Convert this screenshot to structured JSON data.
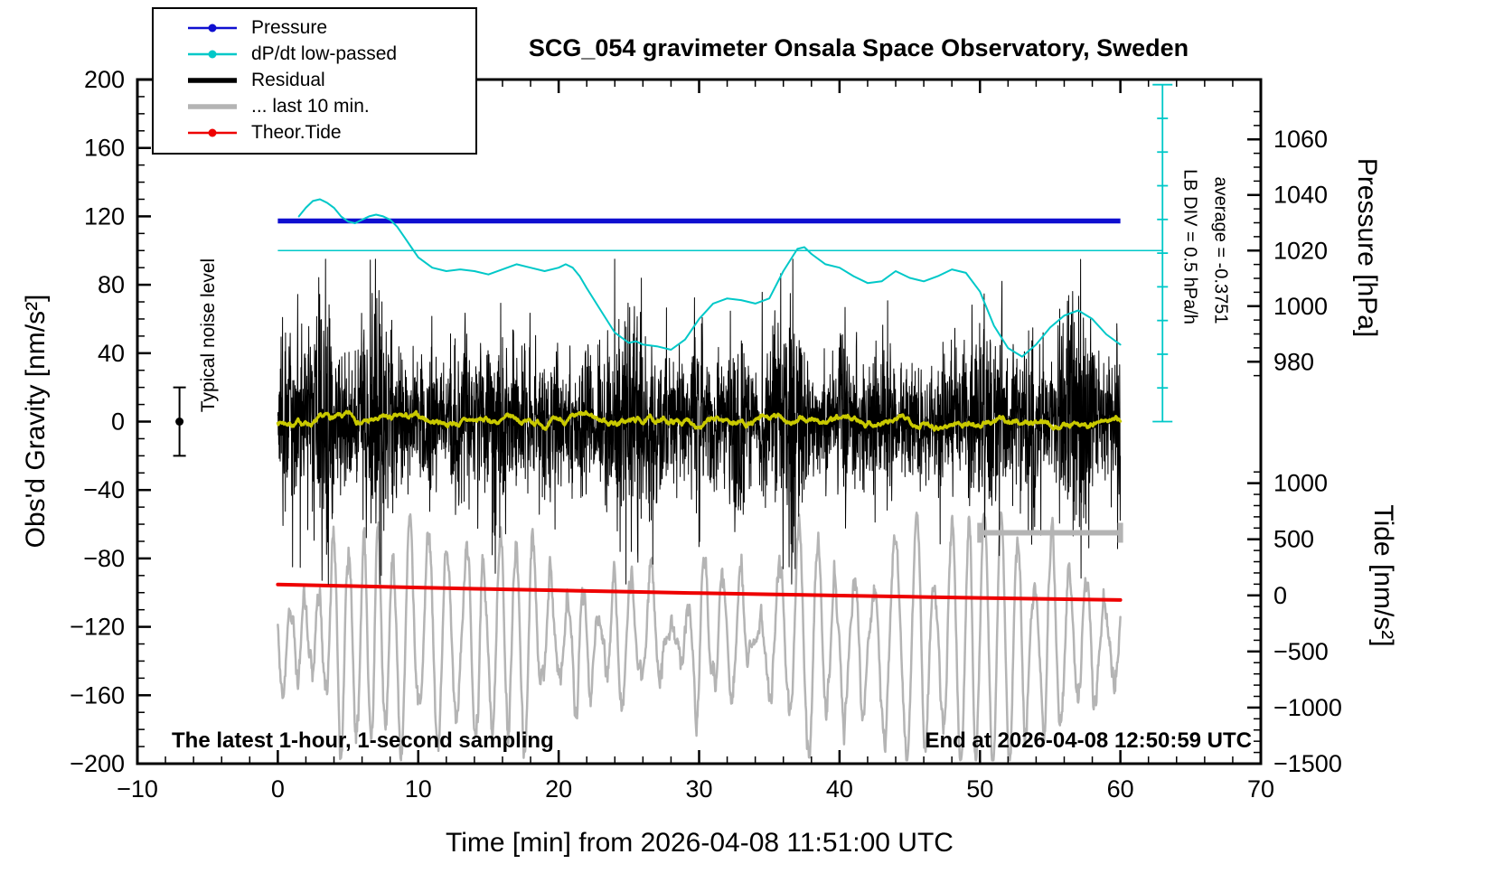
{
  "title": "SCG_054 gravimeter Onsala Space Observatory, Sweden",
  "legend": {
    "items": [
      {
        "label": "Pressure",
        "color": "#0f0fd0",
        "line_width": 2.5,
        "marker": true
      },
      {
        "label": "dP/dt low-passed",
        "color": "#00c8c8",
        "line_width": 2.5,
        "marker": true
      },
      {
        "label": "Residual",
        "color": "#000000",
        "line_width": 5.5,
        "marker": false
      },
      {
        "label": "... last 10 min.",
        "color": "#b4b4b4",
        "line_width": 5.5,
        "marker": false
      },
      {
        "label": "Theor.Tide",
        "color": "#ee0000",
        "line_width": 2.5,
        "marker": true
      }
    ]
  },
  "annotations": {
    "noise_level_label": "Typical noise level",
    "lb_div_label": "LB DIV = 0.5 hPa/h",
    "average_label": "average = -0.3751",
    "bottom_left": "The latest 1-hour, 1-second sampling",
    "bottom_right": "End at 2026-04-08 12:50:59 UTC"
  },
  "chart_data": {
    "type": "line",
    "title": "SCG_054 gravimeter Onsala Space Observatory, Sweden",
    "x_axis": {
      "label": "Time [min] from 2026-04-08 11:51:00 UTC",
      "range": [
        -10,
        70
      ],
      "major_ticks": [
        -10,
        0,
        10,
        20,
        30,
        40,
        50,
        60,
        70
      ],
      "tick_labels": [
        "−10",
        "0",
        "10",
        "20",
        "30",
        "40",
        "50",
        "60",
        "70"
      ],
      "minor_step": 2
    },
    "y_axis_gravity": {
      "label": "Obs'd Gravity [nm/s²]",
      "range": [
        -200,
        200
      ],
      "major_ticks": [
        -200,
        -160,
        -120,
        -80,
        -40,
        0,
        40,
        80,
        120,
        160,
        200
      ],
      "tick_labels": [
        "−200",
        "−160",
        "−120",
        "−80",
        "−40",
        "0",
        "40",
        "80",
        "120",
        "160",
        "200"
      ],
      "minor_step": 10
    },
    "y_axis_pressure": {
      "label": "Pressure [hPa]",
      "major_ticks_hpa": [
        1060,
        1040,
        1020,
        1000,
        980
      ],
      "tick_labels": [
        "1060",
        "1040",
        "1020",
        "1000",
        "980"
      ],
      "gravity_positions": [
        165,
        132.5,
        100,
        67.5,
        35
      ],
      "gravity_per_hpa": 1.625,
      "minor_step_hpa": 5,
      "minor_range_hpa": [
        975,
        1070
      ]
    },
    "y_axis_tide": {
      "label": "Tide [nm/s²]",
      "major_ticks_tide": [
        1000,
        500,
        0,
        -500,
        -1000,
        -1500
      ],
      "tick_labels": [
        "1000",
        "500",
        "0",
        "−500",
        "−1000",
        "−1500"
      ],
      "gravity_positions": [
        -36,
        -68.8,
        -101.6,
        -134.4,
        -167.2,
        -200
      ],
      "gravity_per_unit": 0.0656,
      "minor_step_tide": 100,
      "minor_range_tide": [
        -1500,
        1100
      ]
    },
    "series": [
      {
        "id": "last10",
        "name": "... last 10 min.",
        "type": "oscillation",
        "color": "#b4b4b4",
        "width": 2.5,
        "x_start": 0,
        "x_end": 60,
        "params": {
          "seed": 77,
          "n": 1800,
          "center": -128,
          "amp_base": 38,
          "amp_var": 42,
          "period_min": 1.25,
          "period_var": 0.45,
          "jitter": 5
        }
      },
      {
        "id": "theor-tide",
        "name": "Theor.Tide",
        "type": "curve",
        "color": "#ee0000",
        "width": 4,
        "x": [
          0,
          5,
          10,
          15,
          20,
          25,
          30,
          35,
          40,
          45,
          50,
          55,
          60
        ],
        "y_gravity": [
          -95.2,
          -96.1,
          -97.0,
          -97.9,
          -98.7,
          -99.5,
          -100.3,
          -101.0,
          -101.7,
          -102.4,
          -103.1,
          -103.7,
          -104.3
        ]
      },
      {
        "id": "residual",
        "name": "Residual",
        "type": "noise_residual",
        "color": "#000000",
        "width": 1,
        "x_start": 0,
        "x_end": 60,
        "params": {
          "seed": 42,
          "n": 3600,
          "base_amp": 14,
          "env_amp": 26,
          "spike_prob": 0.004,
          "spike_gain": 2.4,
          "clip": 95
        }
      },
      {
        "id": "residual-lp",
        "name": "Residual low-passed",
        "type": "noise_lowpass",
        "color": "#c9c900",
        "width": 3.2,
        "x_start": 0,
        "x_end": 60,
        "params": {
          "seed": 7,
          "n": 1500,
          "smooth": 0.96,
          "step": 2.0
        }
      },
      {
        "id": "pressure",
        "name": "Pressure",
        "type": "hline",
        "color": "#0f0fd0",
        "width": 5.5,
        "x_start": 0,
        "x_end": 60,
        "y_gravity": 117.3,
        "value_hpa": 1030.6
      },
      {
        "id": "dpdt-zero",
        "name": "dP/dt zero reference",
        "type": "hline",
        "color": "#00c8c8",
        "width": 1.6,
        "x_start": 0,
        "x_end": 63,
        "y_gravity": 100,
        "value_hpa": 1020
      },
      {
        "id": "dpdt",
        "name": "dP/dt low-passed",
        "type": "curve",
        "color": "#00c8c8",
        "width": 2,
        "x": [
          1.5,
          2,
          2.5,
          3,
          3.5,
          4,
          4.5,
          5,
          5.5,
          6,
          6.5,
          7,
          7.5,
          8,
          8.5,
          9,
          9.5,
          10,
          11,
          12,
          13,
          14,
          15,
          16,
          17,
          18,
          19,
          20,
          20.5,
          21,
          21.5,
          22,
          23,
          24,
          25,
          25.5,
          26,
          27,
          28,
          29,
          30,
          31,
          32,
          33,
          34,
          35,
          36,
          37,
          37.5,
          38,
          39,
          40,
          41,
          42,
          43,
          44,
          45,
          46,
          47,
          48,
          49,
          50,
          51,
          52,
          53,
          54,
          55,
          56,
          57,
          58,
          59,
          60
        ],
        "y_gravity": [
          120,
          125,
          129,
          130,
          128,
          125,
          120,
          117,
          116,
          118,
          120,
          121,
          120,
          118,
          114,
          108,
          102,
          96,
          90,
          88,
          89,
          88,
          86,
          89,
          92,
          90,
          88,
          90,
          92,
          90,
          85,
          78,
          65,
          52,
          46,
          47,
          45,
          44,
          42,
          48,
          60,
          69,
          72,
          71,
          69,
          72,
          88,
          101,
          102,
          98,
          92,
          90,
          85,
          81,
          82,
          88,
          84,
          82,
          85,
          89,
          87,
          76,
          56,
          43,
          38,
          45,
          55,
          62,
          65,
          60,
          51,
          45
        ]
      }
    ],
    "extras": {
      "noise_marker": {
        "x": -7,
        "y_gravity": 0,
        "error": 20
      },
      "last10_bracket": {
        "x_start": 50,
        "x_end": 60,
        "y_gravity": -65,
        "color": "#b4b4b4",
        "width": 6
      },
      "scalebar": {
        "x": 63,
        "y_gravity_top": 197,
        "y_gravity_bottom": 0,
        "divisions": 10,
        "color": "#00c8c8"
      }
    }
  }
}
